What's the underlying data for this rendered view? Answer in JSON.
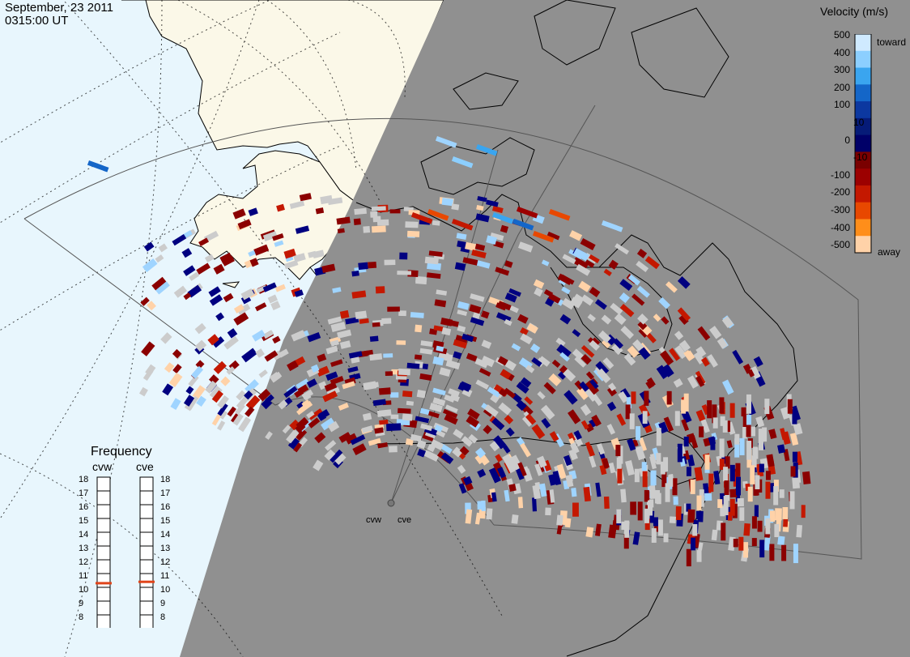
{
  "header": {
    "date": "September, 23 2011",
    "time": "0315:00 UT"
  },
  "colors": {
    "sea": "#e8f6fd",
    "land": "#fbf8e8",
    "night": "#909090",
    "fov_line": "#000000"
  },
  "colorbar": {
    "title": "Velocity (m/s)",
    "toward_label": "toward",
    "away_label": "away",
    "ticks": [
      "500",
      "400",
      "300",
      "200",
      "100",
      "10",
      "0",
      "-10",
      "-100",
      "-200",
      "-300",
      "-400",
      "-500"
    ],
    "colors": [
      "#cfeaff",
      "#8ccfff",
      "#3aa5ef",
      "#1466c8",
      "#0c38a0",
      "#061b78",
      "#000068",
      "#7a0000",
      "#9c0000",
      "#c41800",
      "#e84800",
      "#ff8e1a",
      "#ffd2a8"
    ]
  },
  "frequency": {
    "title": "Frequency",
    "radars": [
      {
        "name": "cvw",
        "value_mhz": 10.8
      },
      {
        "name": "cve",
        "value_mhz": 10.9
      }
    ],
    "scale": [
      "18",
      "17",
      "16",
      "15",
      "14",
      "13",
      "12",
      "11",
      "10",
      "9",
      "8"
    ]
  },
  "map_labels": {
    "cvw": "cvw",
    "cve": "cve"
  }
}
